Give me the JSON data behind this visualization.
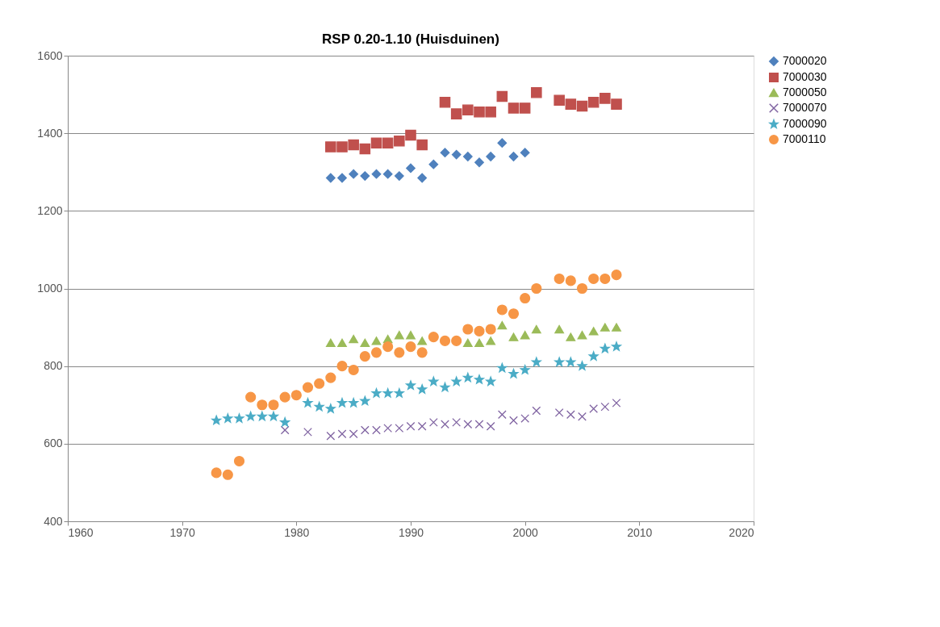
{
  "chart_data": {
    "type": "scatter",
    "title": "RSP 0.20-1.10 (Huisduinen)",
    "xlim": [
      1960,
      2020
    ],
    "xticks": [
      1960,
      1970,
      1980,
      1990,
      2000,
      2010,
      2020
    ],
    "ylim": [
      400,
      1600
    ],
    "yticks": [
      400,
      600,
      800,
      1000,
      1200,
      1400,
      1600
    ],
    "grid": "y",
    "legend": "right",
    "series": [
      {
        "name": "7000020",
        "color": "#4f81bd",
        "marker": "diamond",
        "x": [
          1983,
          1984,
          1985,
          1986,
          1987,
          1988,
          1989,
          1990,
          1991,
          1992,
          1993,
          1994,
          1995,
          1996,
          1997,
          1998,
          1999,
          2000
        ],
        "values": [
          1285,
          1285,
          1295,
          1290,
          1295,
          1295,
          1290,
          1310,
          1285,
          1320,
          1350,
          1345,
          1340,
          1325,
          1340,
          1375,
          1340,
          1350
        ]
      },
      {
        "name": "7000030",
        "color": "#c0504d",
        "marker": "square",
        "x": [
          1983,
          1984,
          1985,
          1986,
          1987,
          1988,
          1989,
          1990,
          1991,
          1993,
          1994,
          1995,
          1996,
          1997,
          1998,
          1999,
          2000,
          2001,
          2003,
          2004,
          2005,
          2006,
          2007,
          2008
        ],
        "values": [
          1365,
          1365,
          1370,
          1360,
          1375,
          1375,
          1380,
          1395,
          1370,
          1480,
          1450,
          1460,
          1455,
          1455,
          1495,
          1465,
          1465,
          1505,
          1485,
          1475,
          1470,
          1480,
          1490,
          1475
        ]
      },
      {
        "name": "7000050",
        "color": "#9bbb59",
        "marker": "triangle",
        "x": [
          1983,
          1984,
          1985,
          1986,
          1987,
          1988,
          1989,
          1990,
          1991,
          1992,
          1993,
          1994,
          1995,
          1996,
          1997,
          1998,
          1999,
          2000,
          2001,
          2003,
          2004,
          2005,
          2006,
          2007,
          2008
        ],
        "values": [
          860,
          860,
          870,
          860,
          865,
          870,
          880,
          880,
          865,
          null,
          null,
          null,
          860,
          860,
          865,
          905,
          875,
          880,
          895,
          895,
          875,
          880,
          890,
          900,
          900
        ]
      },
      {
        "name": "7000070",
        "color": "#8064a2",
        "marker": "cross",
        "x": [
          1979,
          1981,
          1983,
          1984,
          1985,
          1986,
          1987,
          1988,
          1989,
          1990,
          1991,
          1992,
          1993,
          1994,
          1995,
          1996,
          1997,
          1998,
          1999,
          2000,
          2001,
          2003,
          2004,
          2005,
          2006,
          2007,
          2008
        ],
        "values": [
          635,
          630,
          620,
          625,
          625,
          635,
          635,
          640,
          640,
          645,
          645,
          655,
          650,
          655,
          650,
          650,
          645,
          675,
          660,
          665,
          685,
          680,
          675,
          670,
          690,
          695,
          705
        ]
      },
      {
        "name": "7000090",
        "color": "#4bacc6",
        "marker": "star",
        "x": [
          1973,
          1974,
          1975,
          1976,
          1977,
          1978,
          1979,
          1981,
          1982,
          1983,
          1984,
          1985,
          1986,
          1987,
          1988,
          1989,
          1990,
          1991,
          1992,
          1993,
          1994,
          1995,
          1996,
          1997,
          1998,
          1999,
          2000,
          2001,
          2003,
          2004,
          2005,
          2006,
          2007,
          2008
        ],
        "values": [
          660,
          665,
          665,
          670,
          670,
          670,
          655,
          705,
          695,
          690,
          705,
          705,
          710,
          730,
          730,
          730,
          750,
          740,
          760,
          745,
          760,
          770,
          765,
          760,
          795,
          780,
          790,
          810,
          810,
          810,
          800,
          825,
          845,
          850
        ]
      },
      {
        "name": "7000110",
        "color": "#f79646",
        "marker": "circle",
        "x": [
          1973,
          1974,
          1975,
          1976,
          1977,
          1978,
          1979,
          1980,
          1981,
          1982,
          1983,
          1984,
          1985,
          1986,
          1987,
          1988,
          1989,
          1990,
          1991,
          1992,
          1993,
          1994,
          1995,
          1996,
          1997,
          1998,
          1999,
          2000,
          2001,
          2003,
          2004,
          2005,
          2006,
          2007,
          2008
        ],
        "values": [
          525,
          520,
          555,
          720,
          700,
          700,
          720,
          725,
          745,
          755,
          770,
          800,
          790,
          825,
          835,
          850,
          835,
          850,
          835,
          875,
          865,
          865,
          895,
          890,
          895,
          945,
          935,
          975,
          1000,
          1025,
          1020,
          1000,
          1025,
          1025,
          1035
        ]
      }
    ]
  }
}
